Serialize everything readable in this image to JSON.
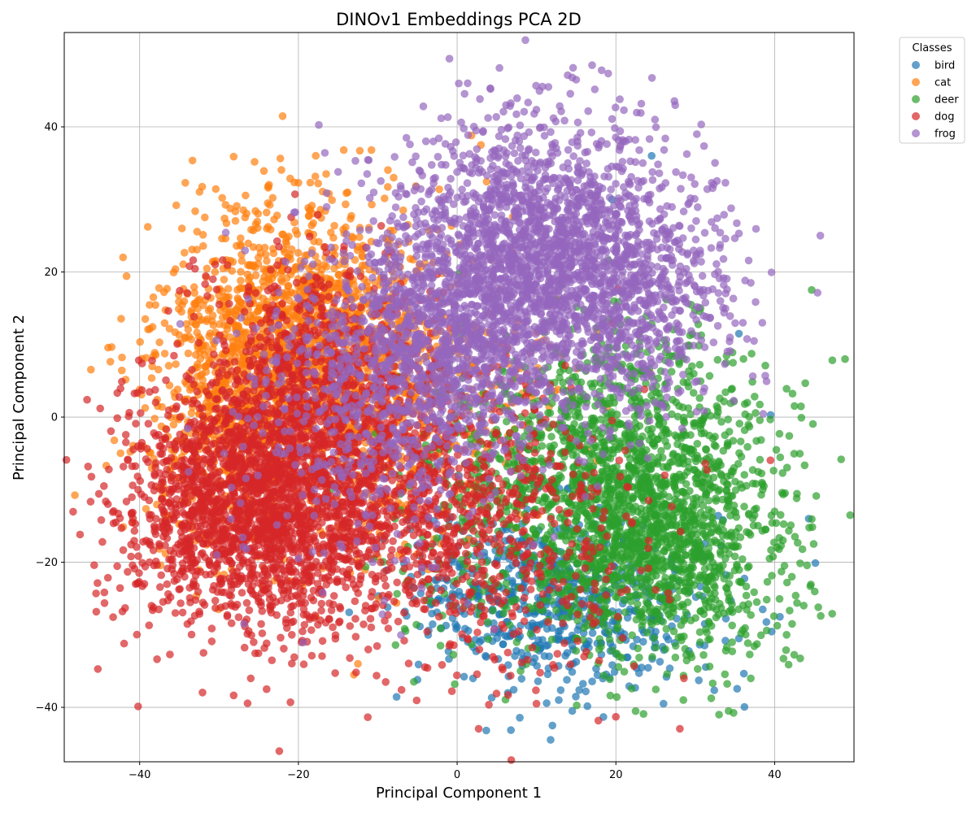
{
  "chart_data": {
    "type": "scatter",
    "title": "DINOv1 Embeddings PCA 2D",
    "xlabel": "Principal Component 1",
    "ylabel": "Principal Component 2",
    "xlim": [
      -49.5,
      50
    ],
    "ylim": [
      -47.5,
      53
    ],
    "x_ticks": [
      -40,
      -20,
      0,
      20,
      40
    ],
    "y_ticks": [
      -40,
      -20,
      0,
      20,
      40
    ],
    "x_tick_labels": [
      "−40",
      "−20",
      "0",
      "20",
      "40"
    ],
    "y_tick_labels": [
      "−40",
      "−20",
      "0",
      "20",
      "40"
    ],
    "grid": true,
    "legend_title": "Classes",
    "legend_position": "outside-top-right",
    "draw_order": [
      "bird",
      "cat",
      "deer",
      "dog",
      "frog"
    ],
    "series": [
      {
        "name": "bird",
        "color": "#1f77b4",
        "clusters": [
          {
            "center": [
              14,
              -26
            ],
            "spread": [
              9,
              6
            ],
            "count": 520
          },
          {
            "center": [
              5,
              -22
            ],
            "spread": [
              7,
              5
            ],
            "count": 140
          }
        ],
        "points": [
          [
            12,
            -42.5
          ],
          [
            14.5,
            -40.5
          ],
          [
            26,
            -39.5
          ],
          [
            12.8,
            -39
          ],
          [
            16.2,
            -37.8
          ],
          [
            -5,
            -36.2
          ],
          [
            2,
            -36
          ],
          [
            39.5,
            0.3
          ],
          [
            44.3,
            -14
          ],
          [
            35.5,
            11.5
          ],
          [
            38.5,
            -26.5
          ],
          [
            35.5,
            -30.5
          ],
          [
            19.5,
            30
          ],
          [
            24.5,
            36
          ],
          [
            0.5,
            3.5
          ]
        ]
      },
      {
        "name": "cat",
        "color": "#ff7f0e",
        "clusters": [
          {
            "center": [
              -20,
              12
            ],
            "spread": [
              8,
              9
            ],
            "count": 1300
          },
          {
            "center": [
              -10,
              2
            ],
            "spread": [
              10,
              10
            ],
            "count": 700
          },
          {
            "center": [
              -28,
              -4
            ],
            "spread": [
              6,
              8
            ],
            "count": 400
          }
        ],
        "points": [
          [
            -44.2,
            -6.7
          ],
          [
            -43.2,
            -3.2
          ],
          [
            -40,
            3.8
          ],
          [
            -37.5,
            10.3
          ],
          [
            -30.5,
            20
          ],
          [
            -20,
            32.3
          ],
          [
            -10.8,
            36.8
          ],
          [
            -6.8,
            28.5
          ],
          [
            -12.5,
            -34
          ],
          [
            -13,
            -35.5
          ],
          [
            1.8,
            38.8
          ],
          [
            3,
            37.5
          ],
          [
            -16.5,
            33.5
          ],
          [
            -24,
            28.2
          ],
          [
            -8,
            33
          ]
        ]
      },
      {
        "name": "deer",
        "color": "#2ca02c",
        "clusters": [
          {
            "center": [
              25,
              -17
            ],
            "spread": [
              8,
              8
            ],
            "count": 1300
          },
          {
            "center": [
              12,
              -10
            ],
            "spread": [
              10,
              10
            ],
            "count": 700
          },
          {
            "center": [
              22,
              0
            ],
            "spread": [
              9,
              7
            ],
            "count": 400
          }
        ],
        "points": [
          [
            41.5,
            3.9
          ],
          [
            45.5,
            -26.2
          ],
          [
            44.5,
            -23.3
          ],
          [
            43.5,
            -18.2
          ],
          [
            42.2,
            -28.5
          ],
          [
            41.5,
            -30
          ],
          [
            41,
            -7.7
          ],
          [
            33,
            -41
          ],
          [
            34.2,
            -40.5
          ],
          [
            -0.3,
            -36.8
          ],
          [
            8,
            -35
          ],
          [
            28.5,
            -39
          ],
          [
            37,
            -36
          ],
          [
            40,
            -13
          ]
        ]
      },
      {
        "name": "dog",
        "color": "#d62728",
        "clusters": [
          {
            "center": [
              -26,
              -12
            ],
            "spread": [
              8,
              8
            ],
            "count": 1900
          },
          {
            "center": [
              -12,
              -6
            ],
            "spread": [
              10,
              11
            ],
            "count": 1100
          },
          {
            "center": [
              -18,
              8
            ],
            "spread": [
              6,
              7
            ],
            "count": 400
          },
          {
            "center": [
              4,
              -16
            ],
            "spread": [
              10,
              9
            ],
            "count": 500
          }
        ],
        "points": [
          [
            -44.5,
            -9.5
          ],
          [
            -44,
            -12
          ],
          [
            -43,
            -14.5
          ],
          [
            -41.3,
            0.6
          ],
          [
            -40.5,
            -23
          ],
          [
            -38.5,
            -26
          ],
          [
            -26,
            -36
          ],
          [
            -24,
            -37.5
          ],
          [
            -21,
            -39.3
          ],
          [
            -7,
            -37.6
          ],
          [
            10,
            -39.5
          ],
          [
            20,
            -41.3
          ],
          [
            25,
            -23.8
          ],
          [
            -9,
            -36.5
          ],
          [
            -35.5,
            -27
          ],
          [
            16,
            -33
          ]
        ]
      },
      {
        "name": "frog",
        "color": "#9467bd",
        "clusters": [
          {
            "center": [
              10,
              23
            ],
            "spread": [
              9,
              9
            ],
            "count": 1900
          },
          {
            "center": [
              -2,
              10
            ],
            "spread": [
              8,
              8
            ],
            "count": 900
          },
          {
            "center": [
              22,
              15
            ],
            "spread": [
              7,
              8
            ],
            "count": 500
          },
          {
            "center": [
              -10,
              0
            ],
            "spread": [
              9,
              10
            ],
            "count": 400
          }
        ],
        "points": [
          [
            17,
            48.5
          ],
          [
            18.2,
            47.8
          ],
          [
            11.5,
            45.5
          ],
          [
            14.5,
            46.8
          ],
          [
            15,
            46.5
          ],
          [
            20.5,
            43.8
          ],
          [
            23.2,
            43.2
          ],
          [
            33.8,
            32.3
          ],
          [
            37,
            18.5
          ],
          [
            35.5,
            25.3
          ],
          [
            -15,
            33.8
          ],
          [
            -11,
            30.2
          ],
          [
            -20,
            -19.5
          ],
          [
            -24.5,
            -2.2
          ],
          [
            36,
            13
          ],
          [
            -3,
            38
          ]
        ]
      }
    ]
  }
}
